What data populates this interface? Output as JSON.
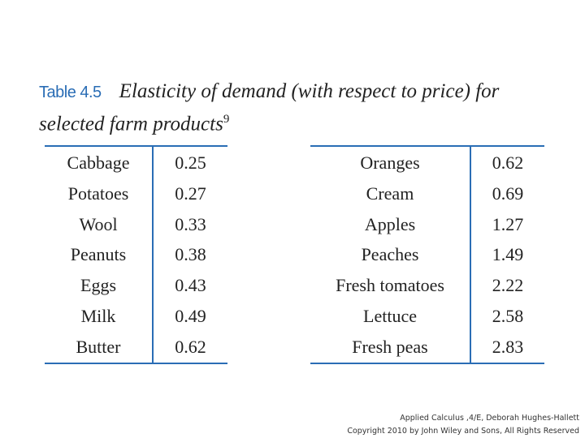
{
  "header": {
    "label": "Table 4.5",
    "title": "Elasticity of demand (with respect to price) for selected farm products",
    "footnote": "9"
  },
  "tables": [
    {
      "rows": [
        [
          "Cabbage",
          0.25
        ],
        [
          "Potatoes",
          0.27
        ],
        [
          "Wool",
          0.33
        ],
        [
          "Peanuts",
          0.38
        ],
        [
          "Eggs",
          0.43
        ],
        [
          "Milk",
          0.49
        ],
        [
          "Butter",
          0.62
        ]
      ]
    },
    {
      "rows": [
        [
          "Oranges",
          0.62
        ],
        [
          "Cream",
          0.69
        ],
        [
          "Apples",
          1.27
        ],
        [
          "Peaches",
          1.49
        ],
        [
          "Fresh tomatoes",
          2.22
        ],
        [
          "Lettuce",
          2.58
        ],
        [
          "Fresh peas",
          2.83
        ]
      ]
    }
  ],
  "footer": {
    "lines": [
      "Applied Calculus ,4/E, Deborah Hughes-Hallett",
      "Copyright 2010 by John Wiley and Sons, All Rights Reserved"
    ]
  }
}
